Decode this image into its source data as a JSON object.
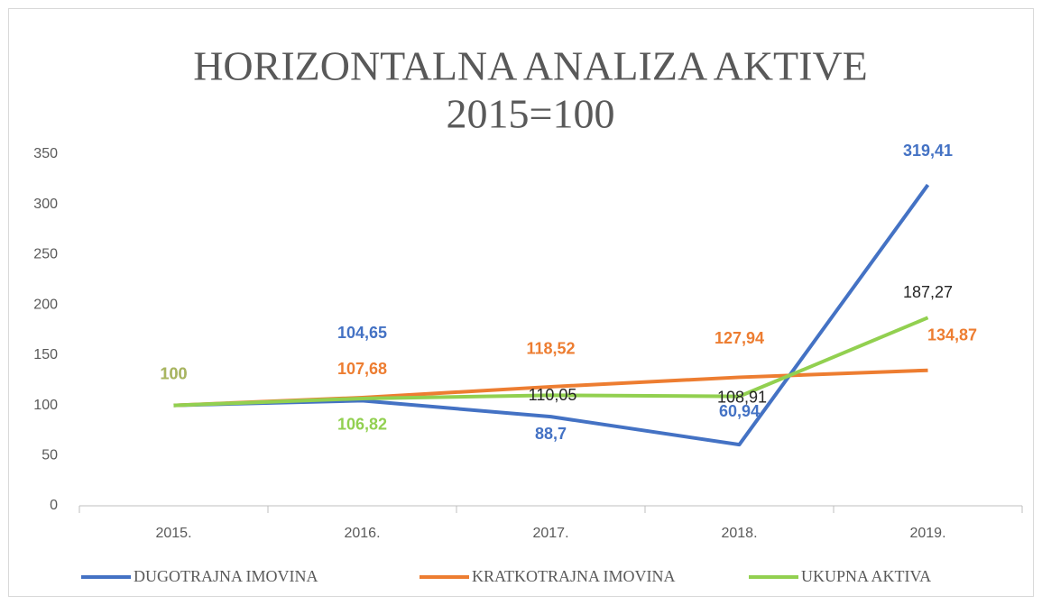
{
  "chart_data": {
    "type": "line",
    "title": "HORIZONTALNA ANALIZA AKTIVE",
    "subtitle": "2015=100",
    "categories": [
      "2015.",
      "2016.",
      "2017.",
      "2018.",
      "2019."
    ],
    "series": [
      {
        "name": "DUGOTRAJNA IMOVINA",
        "color": "#4472c4",
        "values": [
          100,
          104.65,
          88.7,
          60.94,
          319.41
        ],
        "value_labels": [
          "100",
          "104,65",
          "88,7",
          "60,94",
          "319,41"
        ]
      },
      {
        "name": "KRATKOTRAJNA IMOVINA",
        "color": "#ed7d31",
        "values": [
          100,
          107.68,
          118.52,
          127.94,
          134.87
        ],
        "value_labels": [
          "100",
          "107,68",
          "118,52",
          "127,94",
          "134,87"
        ]
      },
      {
        "name": "UKUPNA AKTIVA",
        "color": "#92d050",
        "values": [
          100,
          106.82,
          110.05,
          108.91,
          187.27
        ],
        "value_labels": [
          "100",
          "106,82",
          "110,05",
          "108,91",
          "187,27"
        ]
      }
    ],
    "ylim": [
      0,
      350
    ],
    "yticks": [
      0,
      50,
      100,
      150,
      200,
      250,
      300,
      350
    ],
    "grid": false,
    "legend": "bottom"
  }
}
